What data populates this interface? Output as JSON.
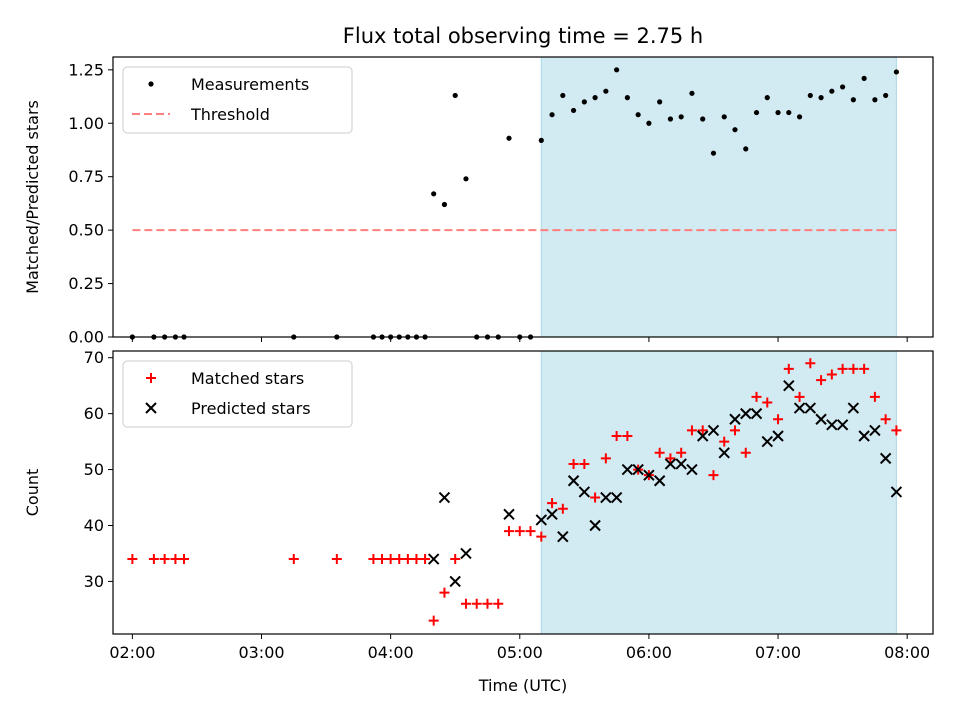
{
  "chart_data": [
    {
      "type": "scatter",
      "title": "Flux total observing time = 2.75 h",
      "xlabel": "",
      "ylabel": "Matched/Predicted stars",
      "xlim": [
        "01:51",
        "08:12"
      ],
      "ylim": [
        0,
        1.31
      ],
      "yticks": [
        "0.00",
        "0.25",
        "0.50",
        "0.75",
        "1.00",
        "1.25"
      ],
      "shaded_interval": [
        "05:10",
        "07:55"
      ],
      "shade_color": "#add8e6",
      "legend_position": "upper left",
      "series": [
        {
          "name": "Measurements",
          "marker": "dot",
          "color": "#000000",
          "points": [
            [
              "02:00",
              0.0
            ],
            [
              "02:10",
              0.0
            ],
            [
              "02:15",
              0.0
            ],
            [
              "02:20",
              0.0
            ],
            [
              "02:24",
              0.0
            ],
            [
              "03:15",
              0.0
            ],
            [
              "03:35",
              0.0
            ],
            [
              "03:52",
              0.0
            ],
            [
              "03:56",
              0.0
            ],
            [
              "04:00",
              0.0
            ],
            [
              "04:04",
              0.0
            ],
            [
              "04:08",
              0.0
            ],
            [
              "04:12",
              0.0
            ],
            [
              "04:16",
              0.0
            ],
            [
              "04:20",
              0.67
            ],
            [
              "04:25",
              0.62
            ],
            [
              "04:30",
              1.13
            ],
            [
              "04:35",
              0.74
            ],
            [
              "04:40",
              0.0
            ],
            [
              "04:45",
              0.0
            ],
            [
              "04:50",
              0.0
            ],
            [
              "04:55",
              0.93
            ],
            [
              "05:00",
              0.0
            ],
            [
              "05:05",
              0.0
            ],
            [
              "05:10",
              0.92
            ],
            [
              "05:15",
              1.04
            ],
            [
              "05:20",
              1.13
            ],
            [
              "05:25",
              1.06
            ],
            [
              "05:30",
              1.1
            ],
            [
              "05:35",
              1.12
            ],
            [
              "05:40",
              1.15
            ],
            [
              "05:45",
              1.25
            ],
            [
              "05:50",
              1.12
            ],
            [
              "05:55",
              1.04
            ],
            [
              "06:00",
              1.0
            ],
            [
              "06:05",
              1.1
            ],
            [
              "06:10",
              1.02
            ],
            [
              "06:15",
              1.03
            ],
            [
              "06:20",
              1.14
            ],
            [
              "06:25",
              1.02
            ],
            [
              "06:30",
              0.86
            ],
            [
              "06:35",
              1.03
            ],
            [
              "06:40",
              0.97
            ],
            [
              "06:45",
              0.88
            ],
            [
              "06:50",
              1.05
            ],
            [
              "06:55",
              1.12
            ],
            [
              "07:00",
              1.05
            ],
            [
              "07:05",
              1.05
            ],
            [
              "07:10",
              1.03
            ],
            [
              "07:15",
              1.13
            ],
            [
              "07:20",
              1.12
            ],
            [
              "07:25",
              1.15
            ],
            [
              "07:30",
              1.17
            ],
            [
              "07:35",
              1.11
            ],
            [
              "07:40",
              1.21
            ],
            [
              "07:45",
              1.11
            ],
            [
              "07:50",
              1.13
            ],
            [
              "07:55",
              1.24
            ]
          ]
        },
        {
          "name": "Threshold",
          "line_style": "dashed",
          "color": "#ff7f7f",
          "points": [
            [
              "02:00",
              0.5
            ],
            [
              "07:55",
              0.5
            ]
          ]
        }
      ]
    },
    {
      "type": "scatter",
      "title": "",
      "xlabel": "Time (UTC)",
      "ylabel": "Count",
      "xlim": [
        "01:51",
        "08:12"
      ],
      "ylim": [
        20.6,
        71.2
      ],
      "xticks": [
        "02:00",
        "03:00",
        "04:00",
        "05:00",
        "06:00",
        "07:00",
        "08:00"
      ],
      "yticks": [
        "30",
        "40",
        "50",
        "60",
        "70"
      ],
      "shaded_interval": [
        "05:10",
        "07:55"
      ],
      "shade_color": "#add8e6",
      "legend_position": "upper left",
      "series": [
        {
          "name": "Matched stars",
          "marker": "plus",
          "color": "#ff0000",
          "points": [
            [
              "02:00",
              34
            ],
            [
              "02:10",
              34
            ],
            [
              "02:15",
              34
            ],
            [
              "02:20",
              34
            ],
            [
              "02:24",
              34
            ],
            [
              "03:15",
              34
            ],
            [
              "03:35",
              34
            ],
            [
              "03:52",
              34
            ],
            [
              "03:56",
              34
            ],
            [
              "04:00",
              34
            ],
            [
              "04:04",
              34
            ],
            [
              "04:08",
              34
            ],
            [
              "04:12",
              34
            ],
            [
              "04:16",
              34
            ],
            [
              "04:20",
              23
            ],
            [
              "04:25",
              28
            ],
            [
              "04:30",
              34
            ],
            [
              "04:35",
              26
            ],
            [
              "04:40",
              26
            ],
            [
              "04:45",
              26
            ],
            [
              "04:50",
              26
            ],
            [
              "04:55",
              39
            ],
            [
              "05:00",
              39
            ],
            [
              "05:05",
              39
            ],
            [
              "05:10",
              38
            ],
            [
              "05:15",
              44
            ],
            [
              "05:20",
              43
            ],
            [
              "05:25",
              51
            ],
            [
              "05:30",
              51
            ],
            [
              "05:35",
              45
            ],
            [
              "05:40",
              52
            ],
            [
              "05:45",
              56
            ],
            [
              "05:50",
              56
            ],
            [
              "05:55",
              50
            ],
            [
              "06:00",
              49
            ],
            [
              "06:05",
              53
            ],
            [
              "06:10",
              52
            ],
            [
              "06:15",
              53
            ],
            [
              "06:20",
              57
            ],
            [
              "06:25",
              57
            ],
            [
              "06:30",
              49
            ],
            [
              "06:35",
              55
            ],
            [
              "06:40",
              57
            ],
            [
              "06:45",
              53
            ],
            [
              "06:50",
              63
            ],
            [
              "06:55",
              62
            ],
            [
              "07:00",
              59
            ],
            [
              "07:05",
              68
            ],
            [
              "07:10",
              63
            ],
            [
              "07:15",
              69
            ],
            [
              "07:20",
              66
            ],
            [
              "07:25",
              67
            ],
            [
              "07:30",
              68
            ],
            [
              "07:35",
              68
            ],
            [
              "07:40",
              68
            ],
            [
              "07:45",
              63
            ],
            [
              "07:50",
              59
            ],
            [
              "07:55",
              57
            ]
          ]
        },
        {
          "name": "Predicted stars",
          "marker": "x",
          "color": "#000000",
          "points": [
            [
              "04:20",
              34
            ],
            [
              "04:25",
              45
            ],
            [
              "04:30",
              30
            ],
            [
              "04:35",
              35
            ],
            [
              "04:55",
              42
            ],
            [
              "05:10",
              41
            ],
            [
              "05:15",
              42
            ],
            [
              "05:20",
              38
            ],
            [
              "05:25",
              48
            ],
            [
              "05:30",
              46
            ],
            [
              "05:35",
              40
            ],
            [
              "05:40",
              45
            ],
            [
              "05:45",
              45
            ],
            [
              "05:50",
              50
            ],
            [
              "05:55",
              50
            ],
            [
              "06:00",
              49
            ],
            [
              "06:05",
              48
            ],
            [
              "06:10",
              51
            ],
            [
              "06:15",
              51
            ],
            [
              "06:20",
              50
            ],
            [
              "06:25",
              56
            ],
            [
              "06:30",
              57
            ],
            [
              "06:35",
              53
            ],
            [
              "06:40",
              59
            ],
            [
              "06:45",
              60
            ],
            [
              "06:50",
              60
            ],
            [
              "06:55",
              55
            ],
            [
              "07:00",
              56
            ],
            [
              "07:05",
              65
            ],
            [
              "07:10",
              61
            ],
            [
              "07:15",
              61
            ],
            [
              "07:20",
              59
            ],
            [
              "07:25",
              58
            ],
            [
              "07:30",
              58
            ],
            [
              "07:35",
              61
            ],
            [
              "07:40",
              56
            ],
            [
              "07:45",
              57
            ],
            [
              "07:50",
              52
            ],
            [
              "07:55",
              46
            ]
          ]
        }
      ]
    }
  ]
}
